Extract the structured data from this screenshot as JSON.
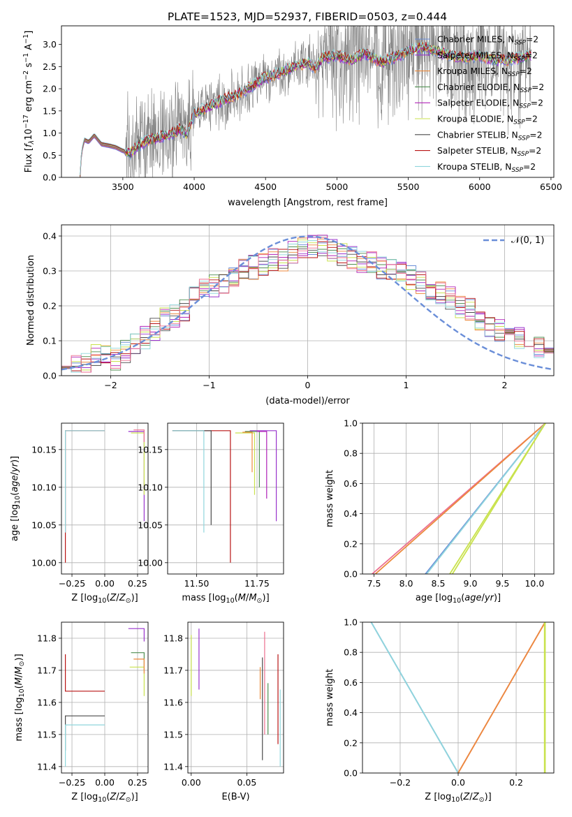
{
  "figure_title": "PLATE=1523, MJD=52937, FIBERID=0503, z=0.444",
  "colors": {
    "chabrier_miles": "#6a8ed8",
    "salpeter_miles": "#9933cc",
    "kroupa_miles": "#ec8a3c",
    "chabrier_elodie": "#4f8f52",
    "salpeter_elodie": "#b020b8",
    "kroupa_elodie": "#c9e24d",
    "chabrier_stelib": "#4a4a4a",
    "salpeter_stelib": "#b81414",
    "kroupa_stelib": "#8fd6dc",
    "pink": "#ec6f8f",
    "observed": "#808080",
    "normal": "#6a8ed8"
  },
  "chart_data": [
    {
      "id": "spectrum",
      "type": "line",
      "xlabel": "wavelength [Angstrom, rest frame]",
      "ylabel": "Flux [f_λ 10^-17 erg cm^-2 s^-1 A^-1]",
      "ylabel_parts": {
        "base": "Flux [",
        "f": "f",
        "lambda": "λ",
        "ten": "10",
        "e1": "−17",
        "erg": " erg cm",
        "e2": "−2",
        "s": " s",
        "e3": "−1",
        "a": " A",
        "e4": "−1",
        "close": "]"
      },
      "xlim": [
        3070,
        6520
      ],
      "ylim": [
        0,
        3.42
      ],
      "xticks": [
        "3500",
        "4000",
        "4500",
        "5000",
        "5500",
        "6000",
        "6500"
      ],
      "xtick_values": [
        3500,
        4000,
        4500,
        5000,
        5500,
        6000,
        6500
      ],
      "yticks": [
        "0.0",
        "0.5",
        "1.0",
        "1.5",
        "2.0",
        "2.5",
        "3.0"
      ],
      "ytick_values": [
        0,
        0.5,
        1.0,
        1.5,
        2.0,
        2.5,
        3.0
      ],
      "legend_position": "upper-right",
      "legend_suffix": "SSP",
      "legend": [
        {
          "label": "Chabrier MILES, N",
          "color": "chabrier_miles"
        },
        {
          "label": "Salpeter MILES, N",
          "color": "salpeter_miles"
        },
        {
          "label": "Kroupa MILES, N",
          "color": "kroupa_miles"
        },
        {
          "label": "Chabrier ELODIE, N",
          "color": "chabrier_elodie"
        },
        {
          "label": "Salpeter ELODIE, N",
          "color": "salpeter_elodie"
        },
        {
          "label": "Kroupa ELODIE, N",
          "color": "kroupa_elodie"
        },
        {
          "label": "Chabrier STELIB, N",
          "color": "chabrier_stelib"
        },
        {
          "label": "Salpeter STELIB, N",
          "color": "salpeter_stelib"
        },
        {
          "label": "Kroupa STELIB, N",
          "color": "kroupa_stelib"
        }
      ],
      "legend_value": "=2",
      "model_continuum": {
        "x": [
          3200,
          3210,
          3230,
          3260,
          3300,
          3350,
          3400,
          3450,
          3500,
          3550,
          3600,
          3650,
          3700,
          3750,
          3800,
          3850,
          3900,
          3950,
          4000,
          4100,
          4200,
          4300,
          4400,
          4500,
          4600,
          4700,
          4800,
          4850,
          4900,
          5000,
          5100,
          5200,
          5300,
          5400,
          5500,
          5600,
          5700,
          5800,
          5900,
          6000,
          6100,
          6200,
          6300,
          6350
        ],
        "y": [
          0.0,
          0.55,
          0.85,
          0.8,
          0.95,
          0.75,
          0.72,
          0.68,
          0.6,
          0.55,
          0.7,
          0.8,
          0.85,
          0.9,
          0.95,
          1.0,
          1.1,
          0.95,
          1.45,
          1.6,
          1.75,
          1.85,
          2.05,
          2.25,
          2.35,
          2.5,
          2.6,
          2.45,
          2.7,
          2.75,
          2.65,
          2.8,
          2.6,
          2.7,
          2.85,
          2.95,
          2.85,
          2.75,
          2.7,
          2.75,
          2.65,
          2.65,
          2.7,
          2.75
        ]
      },
      "observed_seed": 42
    },
    {
      "id": "residuals",
      "type": "step",
      "xlabel": "(data-model)/error",
      "ylabel": "Normed distribution",
      "xlim": [
        -2.5,
        2.5
      ],
      "ylim": [
        0,
        0.432
      ],
      "xticks": [
        "−2",
        "−1",
        "0",
        "1",
        "2"
      ],
      "xtick_values": [
        -2,
        -1,
        0,
        1,
        2
      ],
      "yticks": [
        "0.0",
        "0.1",
        "0.2",
        "0.3",
        "0.4"
      ],
      "ytick_values": [
        0,
        0.1,
        0.2,
        0.3,
        0.4
      ],
      "legend_position": "upper-right",
      "legend_label": "𝒩(0, 1)",
      "bin_width": 0.1,
      "base_hist": [
        0.025,
        0.027,
        0.03,
        0.035,
        0.06,
        0.055,
        0.05,
        0.07,
        0.09,
        0.1,
        0.11,
        0.13,
        0.16,
        0.17,
        0.19,
        0.21,
        0.23,
        0.25,
        0.26,
        0.27,
        0.28,
        0.29,
        0.3,
        0.31,
        0.32,
        0.33,
        0.33,
        0.34,
        0.35,
        0.36,
        0.37,
        0.37,
        0.36,
        0.36,
        0.35,
        0.34,
        0.33,
        0.33,
        0.32,
        0.31,
        0.3,
        0.29,
        0.28,
        0.27,
        0.26,
        0.25,
        0.24,
        0.22,
        0.2,
        0.19,
        0.17,
        0.16,
        0.14,
        0.13,
        0.12,
        0.11,
        0.1,
        0.09,
        0.08,
        0.075
      ]
    },
    {
      "id": "age_vs_Z",
      "type": "step",
      "xlabel": "Z [log10(Z/Z⊙)]",
      "ylabel": "age  [log10(age/yr)]",
      "xlim": [
        -0.33,
        0.33
      ],
      "ylim": [
        9.985,
        10.185
      ],
      "xticks": [
        "−0.25",
        "0.00",
        "0.25"
      ],
      "xtick_values": [
        -0.25,
        0.0,
        0.25
      ],
      "yticks": [
        "10.00",
        "10.05",
        "10.10",
        "10.15"
      ],
      "ytick_values": [
        10.0,
        10.05,
        10.1,
        10.15
      ],
      "lines": [
        {
          "x": [
            -0.3,
            -0.3,
            0.0
          ],
          "y": [
            10.0,
            10.175,
            10.175
          ],
          "color": "salpeter_stelib"
        },
        {
          "x": [
            -0.3,
            -0.3,
            0.0
          ],
          "y": [
            10.04,
            10.175,
            10.175
          ],
          "color": "kroupa_stelib"
        },
        {
          "x": [
            0.18,
            0.3,
            0.3
          ],
          "y": [
            10.174,
            10.174,
            10.055
          ],
          "color": "salpeter_miles"
        },
        {
          "x": [
            0.2,
            0.3,
            0.3
          ],
          "y": [
            10.172,
            10.172,
            10.09
          ],
          "color": "kroupa_elodie"
        },
        {
          "x": [
            0.22,
            0.3,
            0.3
          ],
          "y": [
            10.176,
            10.176,
            10.16
          ],
          "color": "pink"
        }
      ]
    },
    {
      "id": "age_vs_mass",
      "type": "step",
      "xlabel": "mass [log10(M/M⊙)]",
      "ylabel": "",
      "xlim": [
        11.38,
        11.86
      ],
      "ylim": [
        9.985,
        10.185
      ],
      "xticks": [
        "11.50",
        "11.75"
      ],
      "xtick_values": [
        11.5,
        11.75
      ],
      "yticks": [
        "10.00",
        "10.05",
        "10.10",
        "10.15"
      ],
      "ytick_values": [
        10.0,
        10.05,
        10.1,
        10.15
      ],
      "lines": [
        {
          "x": [
            11.4,
            11.64,
            11.64
          ],
          "y": [
            10.175,
            10.175,
            10.0
          ],
          "color": "salpeter_stelib"
        },
        {
          "x": [
            11.4,
            11.56,
            11.56
          ],
          "y": [
            10.175,
            10.175,
            10.05
          ],
          "color": "chabrier_stelib"
        },
        {
          "x": [
            11.4,
            11.53,
            11.53
          ],
          "y": [
            10.175,
            10.175,
            10.04
          ],
          "color": "kroupa_stelib"
        },
        {
          "x": [
            11.66,
            11.74,
            11.74
          ],
          "y": [
            10.172,
            10.172,
            10.09
          ],
          "color": "kroupa_elodie"
        },
        {
          "x": [
            11.7,
            11.76,
            11.76
          ],
          "y": [
            10.174,
            10.174,
            10.1
          ],
          "color": "chabrier_elodie"
        },
        {
          "x": [
            11.72,
            11.83,
            11.83
          ],
          "y": [
            10.175,
            10.175,
            10.055
          ],
          "color": "salpeter_miles"
        },
        {
          "x": [
            11.69,
            11.73,
            11.73
          ],
          "y": [
            10.173,
            10.173,
            10.12
          ],
          "color": "kroupa_miles"
        },
        {
          "x": [
            11.75,
            11.79,
            11.79
          ],
          "y": [
            10.174,
            10.174,
            10.085
          ],
          "color": "salpeter_elodie"
        }
      ]
    },
    {
      "id": "massweight_vs_age",
      "type": "line",
      "xlabel": "age  [log10(age/yr)]",
      "ylabel": "mass weight",
      "xlim": [
        7.32,
        10.3
      ],
      "ylim": [
        0,
        1.0
      ],
      "xticks": [
        "7.5",
        "8.0",
        "8.5",
        "9.0",
        "9.5",
        "10.0"
      ],
      "xtick_values": [
        7.5,
        8.0,
        8.5,
        9.0,
        9.5,
        10.0
      ],
      "yticks": [
        "0.0",
        "0.2",
        "0.4",
        "0.6",
        "0.8",
        "1.0"
      ],
      "ytick_values": [
        0,
        0.2,
        0.4,
        0.6,
        0.8,
        1.0
      ],
      "lines": [
        {
          "x": [
            7.47,
            10.17
          ],
          "y": [
            0,
            1.0
          ],
          "color": "pink"
        },
        {
          "x": [
            7.52,
            10.17
          ],
          "y": [
            0,
            1.0
          ],
          "color": "kroupa_miles"
        },
        {
          "x": [
            8.3,
            10.17
          ],
          "y": [
            0,
            1.0
          ],
          "color": "chabrier_miles"
        },
        {
          "x": [
            8.32,
            10.17
          ],
          "y": [
            0,
            1.0
          ],
          "color": "kroupa_stelib"
        },
        {
          "x": [
            8.68,
            10.17
          ],
          "y": [
            0,
            1.0
          ],
          "color": "kroupa_elodie"
        },
        {
          "x": [
            8.72,
            10.17
          ],
          "y": [
            0,
            1.0
          ],
          "color": "kroupa_elodie"
        }
      ]
    },
    {
      "id": "mass_vs_Z",
      "type": "step",
      "xlabel": "Z [log10(Z/Z⊙)]",
      "ylabel": "mass [log10(M/M⊙)]",
      "xlim": [
        -0.33,
        0.33
      ],
      "ylim": [
        11.38,
        11.85
      ],
      "xticks": [
        "−0.25",
        "0.00",
        "0.25"
      ],
      "xtick_values": [
        -0.25,
        0.0,
        0.25
      ],
      "yticks": [
        "11.4",
        "11.5",
        "11.6",
        "11.7",
        "11.8"
      ],
      "ytick_values": [
        11.4,
        11.5,
        11.6,
        11.7,
        11.8
      ],
      "lines": [
        {
          "x": [
            0.0,
            -0.3,
            -0.3
          ],
          "y": [
            11.635,
            11.635,
            11.75
          ],
          "color": "salpeter_stelib"
        },
        {
          "x": [
            0.0,
            -0.3,
            -0.3
          ],
          "y": [
            11.558,
            11.558,
            11.45
          ],
          "color": "chabrier_stelib"
        },
        {
          "x": [
            0.0,
            -0.3,
            -0.3
          ],
          "y": [
            11.53,
            11.53,
            11.4
          ],
          "color": "kroupa_stelib"
        },
        {
          "x": [
            0.18,
            0.3,
            0.3
          ],
          "y": [
            11.83,
            11.83,
            11.79
          ],
          "color": "salpeter_miles"
        },
        {
          "x": [
            0.2,
            0.3,
            0.3
          ],
          "y": [
            11.755,
            11.755,
            11.7
          ],
          "color": "chabrier_elodie"
        },
        {
          "x": [
            0.19,
            0.3,
            0.3
          ],
          "y": [
            11.71,
            11.71,
            11.62
          ],
          "color": "kroupa_elodie"
        },
        {
          "x": [
            0.22,
            0.3,
            0.3
          ],
          "y": [
            11.735,
            11.735,
            11.69
          ],
          "color": "kroupa_miles"
        }
      ]
    },
    {
      "id": "mass_vs_ebv",
      "type": "vlines",
      "xlabel": "E(B-V)",
      "ylabel": "",
      "xlim": [
        -0.003,
        0.083
      ],
      "ylim": [
        11.38,
        11.85
      ],
      "xticks": [
        "0.00",
        "0.05"
      ],
      "xtick_values": [
        0.0,
        0.05
      ],
      "yticks": [
        "11.4",
        "11.5",
        "11.6",
        "11.7",
        "11.8"
      ],
      "ytick_values": [
        11.4,
        11.5,
        11.6,
        11.7,
        11.8
      ],
      "lines": [
        {
          "x": 0.0,
          "y": [
            11.62,
            11.81
          ],
          "color": "kroupa_elodie"
        },
        {
          "x": 0.007,
          "y": [
            11.64,
            11.83
          ],
          "color": "salpeter_miles"
        },
        {
          "x": 0.062,
          "y": [
            11.61,
            11.71
          ],
          "color": "kroupa_miles"
        },
        {
          "x": 0.064,
          "y": [
            11.42,
            11.74
          ],
          "color": "chabrier_stelib"
        },
        {
          "x": 0.066,
          "y": [
            11.5,
            11.82
          ],
          "color": "pink"
        },
        {
          "x": 0.069,
          "y": [
            11.5,
            11.66
          ],
          "color": "chabrier_elodie"
        },
        {
          "x": 0.078,
          "y": [
            11.47,
            11.75
          ],
          "color": "salpeter_stelib"
        },
        {
          "x": 0.08,
          "y": [
            11.4,
            11.64
          ],
          "color": "kroupa_stelib"
        }
      ]
    },
    {
      "id": "massweight_vs_Z",
      "type": "line",
      "xlabel": "Z [log10(Z/Z⊙)]",
      "ylabel": "mass weight",
      "xlim": [
        -0.33,
        0.33
      ],
      "ylim": [
        0,
        1.0
      ],
      "xticks": [
        "−0.2",
        "0.0",
        "0.2"
      ],
      "xtick_values": [
        -0.2,
        0.0,
        0.2
      ],
      "yticks": [
        "0.0",
        "0.2",
        "0.4",
        "0.6",
        "0.8",
        "1.0"
      ],
      "ytick_values": [
        0,
        0.2,
        0.4,
        0.6,
        0.8,
        1.0
      ],
      "lines": [
        {
          "x": [
            -0.3,
            0.0
          ],
          "y": [
            1.0,
            0.0
          ],
          "color": "chabrier_miles"
        },
        {
          "x": [
            -0.3,
            0.0
          ],
          "y": [
            1.0,
            0.0
          ],
          "color": "kroupa_stelib"
        },
        {
          "x": [
            0.0,
            0.3
          ],
          "y": [
            0.0,
            1.0
          ],
          "color": "pink"
        },
        {
          "x": [
            0.0,
            0.3
          ],
          "y": [
            0.0,
            1.0
          ],
          "color": "kroupa_miles"
        },
        {
          "x": [
            0.3,
            0.3
          ],
          "y": [
            0.0,
            1.0
          ],
          "color": "kroupa_elodie"
        },
        {
          "x": [
            0.298,
            0.298
          ],
          "y": [
            0.0,
            1.0
          ],
          "color": "kroupa_elodie"
        }
      ]
    }
  ]
}
